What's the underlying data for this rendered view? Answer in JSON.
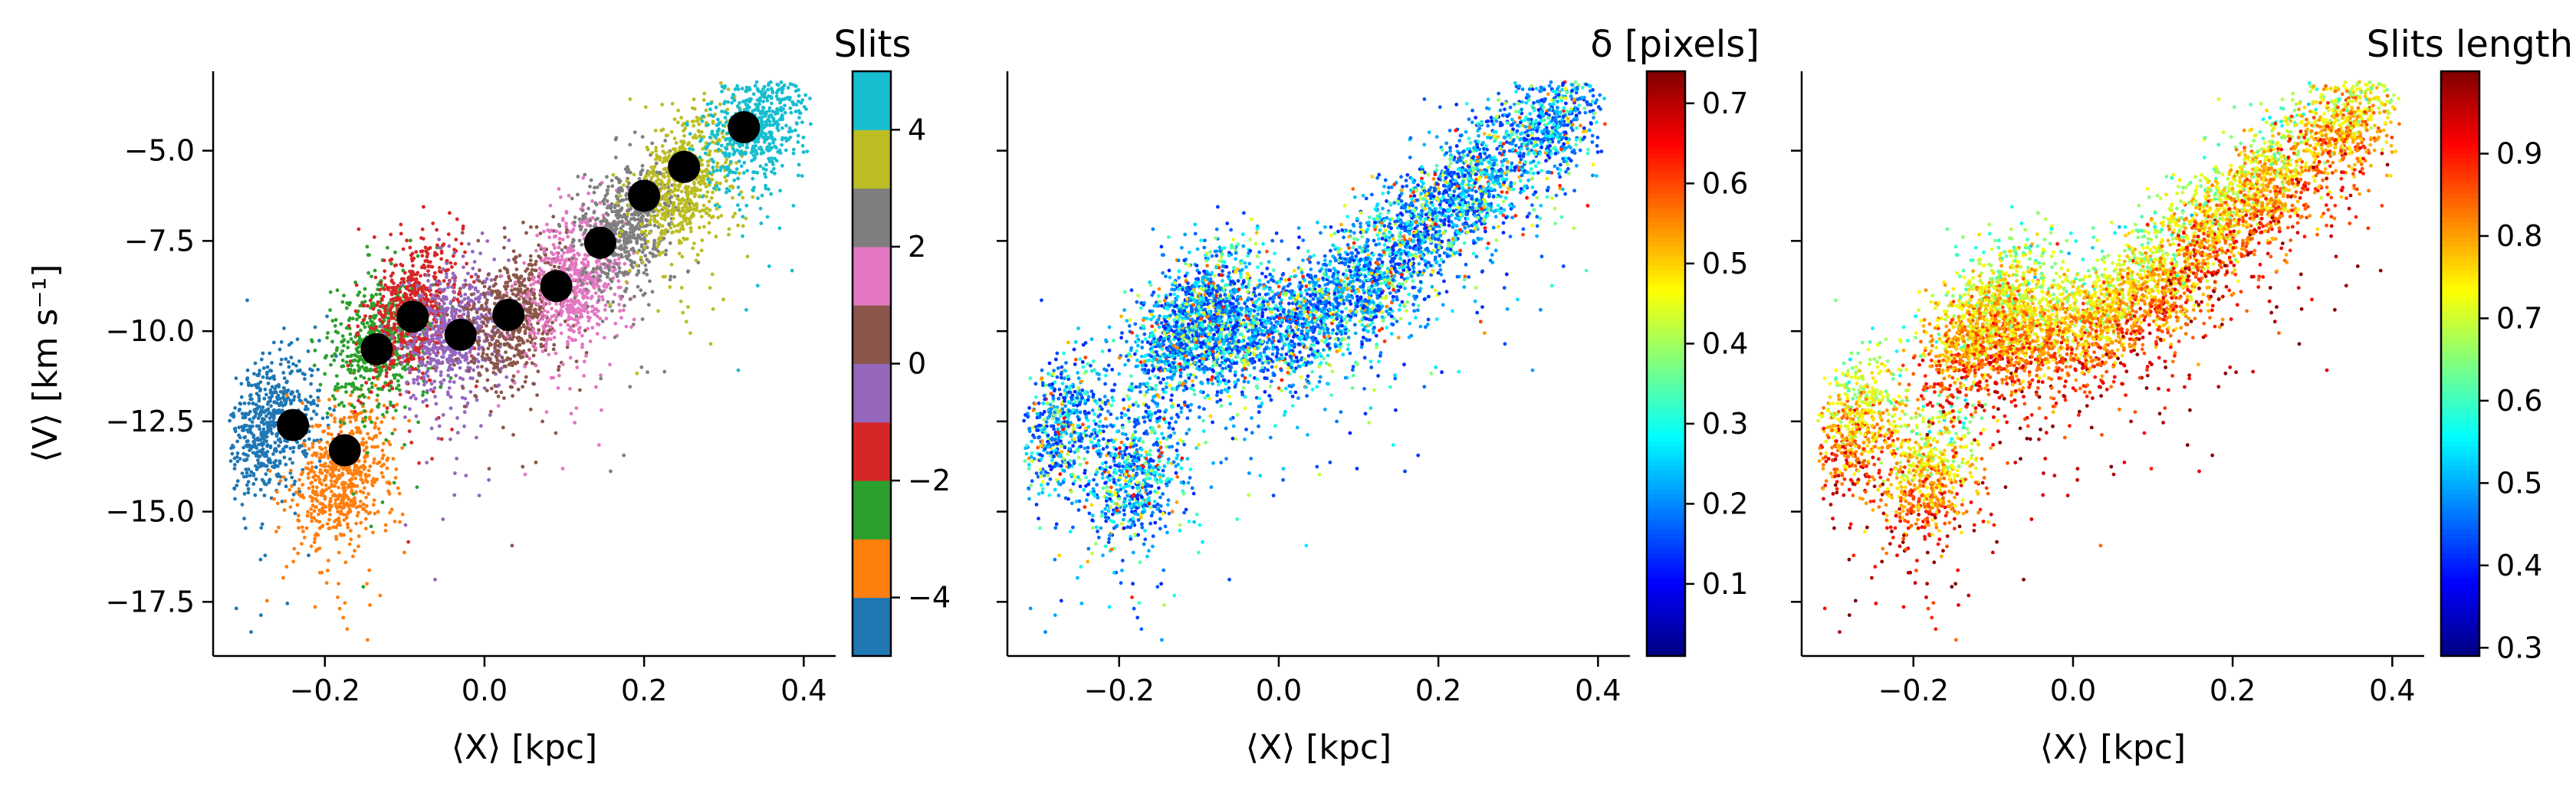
{
  "chart_data": [
    {
      "type": "scatter",
      "panel": "slits",
      "xlabel": "⟨X⟩ [kpc]",
      "ylabel": "⟨V⟩ [km s⁻¹]",
      "xlim": [
        -0.34,
        0.44
      ],
      "ylim": [
        -19.0,
        -2.8
      ],
      "x_ticks": [
        -0.2,
        0.0,
        0.2,
        0.4
      ],
      "x_tick_labels": [
        "−0.2",
        "0.0",
        "0.2",
        "0.4"
      ],
      "y_ticks": [
        -5.0,
        -7.5,
        -10.0,
        -12.5,
        -15.0,
        -17.5
      ],
      "y_tick_labels": [
        "−5.0",
        "−7.5",
        "−10.0",
        "−12.5",
        "−15.0",
        "−17.5"
      ],
      "colorbar": {
        "title": "Slits",
        "range": [
          -5,
          5
        ],
        "ticks": [
          -4,
          -2,
          0,
          2,
          4
        ],
        "tick_labels": [
          "−4",
          "−2",
          "0",
          "2",
          "4"
        ],
        "bins": [
          {
            "from": -5,
            "to": -4,
            "color": "#1f77b4"
          },
          {
            "from": -4,
            "to": -3,
            "color": "#ff7f0e"
          },
          {
            "from": -3,
            "to": -2,
            "color": "#2ca02c"
          },
          {
            "from": -2,
            "to": -1,
            "color": "#d62728"
          },
          {
            "from": -1,
            "to": 0,
            "color": "#9467bd"
          },
          {
            "from": 0,
            "to": 1,
            "color": "#8c564b"
          },
          {
            "from": 1,
            "to": 2,
            "color": "#e377c2"
          },
          {
            "from": 2,
            "to": 3,
            "color": "#7f7f7f"
          },
          {
            "from": 3,
            "to": 4,
            "color": "#bcbd22"
          },
          {
            "from": 4,
            "to": 5,
            "color": "#17becf"
          }
        ]
      },
      "slit_groups": [
        {
          "x": -0.27,
          "y": -12.5,
          "color": "#1f77b4"
        },
        {
          "x": -0.18,
          "y": -14.0,
          "color": "#ff7f0e"
        },
        {
          "x": -0.13,
          "y": -10.2,
          "color": "#2ca02c"
        },
        {
          "x": -0.09,
          "y": -9.4,
          "color": "#d62728"
        },
        {
          "x": -0.04,
          "y": -10.0,
          "color": "#9467bd"
        },
        {
          "x": 0.04,
          "y": -9.5,
          "color": "#8c564b"
        },
        {
          "x": 0.11,
          "y": -8.6,
          "color": "#e377c2"
        },
        {
          "x": 0.18,
          "y": -7.0,
          "color": "#7f7f7f"
        },
        {
          "x": 0.25,
          "y": -5.8,
          "color": "#bcbd22"
        },
        {
          "x": 0.34,
          "y": -4.2,
          "color": "#17becf"
        }
      ],
      "black_points": [
        {
          "x": -0.24,
          "y": -12.6
        },
        {
          "x": -0.175,
          "y": -13.3
        },
        {
          "x": -0.135,
          "y": -10.5
        },
        {
          "x": -0.09,
          "y": -9.6
        },
        {
          "x": -0.03,
          "y": -10.1
        },
        {
          "x": 0.03,
          "y": -9.55
        },
        {
          "x": 0.09,
          "y": -8.75
        },
        {
          "x": 0.145,
          "y": -7.55
        },
        {
          "x": 0.2,
          "y": -6.25
        },
        {
          "x": 0.25,
          "y": -5.45
        },
        {
          "x": 0.325,
          "y": -4.35
        }
      ]
    },
    {
      "type": "scatter",
      "panel": "delta",
      "xlabel": "⟨X⟩ [kpc]",
      "xlim": [
        -0.34,
        0.44
      ],
      "ylim": [
        -19.0,
        -2.8
      ],
      "x_ticks": [
        -0.2,
        0.0,
        0.2,
        0.4
      ],
      "x_tick_labels": [
        "−0.2",
        "0.0",
        "0.2",
        "0.4"
      ],
      "colormap": "jet",
      "colorbar": {
        "title": "δ [pixels]",
        "range": [
          0.01,
          0.74
        ],
        "ticks": [
          0.1,
          0.2,
          0.3,
          0.4,
          0.5,
          0.6,
          0.7
        ],
        "tick_labels": [
          "0.1",
          "0.2",
          "0.3",
          "0.4",
          "0.5",
          "0.6",
          "0.7"
        ]
      }
    },
    {
      "type": "scatter",
      "panel": "length",
      "xlabel": "⟨X⟩ [kpc]",
      "xlim": [
        -0.34,
        0.44
      ],
      "ylim": [
        -19.0,
        -2.8
      ],
      "x_ticks": [
        -0.2,
        0.0,
        0.2,
        0.4
      ],
      "x_tick_labels": [
        "−0.2",
        "0.0",
        "0.2",
        "0.4"
      ],
      "colormap": "jet",
      "colorbar": {
        "title": "Slits length",
        "range": [
          0.29,
          1.0
        ],
        "ticks": [
          0.3,
          0.4,
          0.5,
          0.6,
          0.7,
          0.8,
          0.9
        ],
        "tick_labels": [
          "0.3",
          "0.4",
          "0.5",
          "0.6",
          "0.7",
          "0.8",
          "0.9"
        ]
      }
    }
  ]
}
